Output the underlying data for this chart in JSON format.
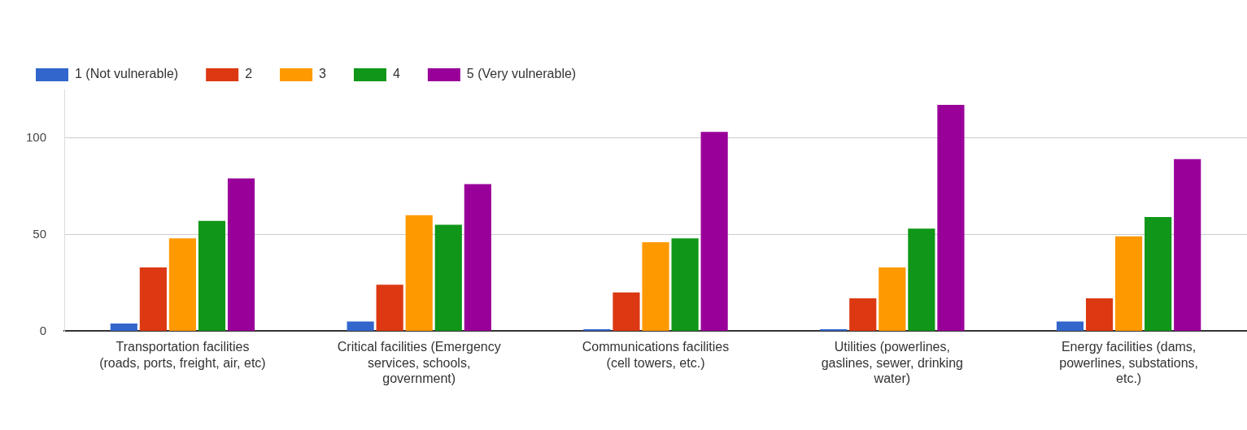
{
  "chart_data": {
    "type": "bar",
    "categories": [
      "Transportation facilities (roads, ports, freight, air, etc)",
      "Critical facilities (Emergency services, schools, government)",
      "Communications facilities (cell towers, etc.)",
      "Utilities (powerlines, gaslines, sewer, drinking water)",
      "Energy facilities (dams, powerlines, substations, etc.)"
    ],
    "series": [
      {
        "name": "1 (Not vulnerable)",
        "color": "#3366cc",
        "values": [
          4,
          5,
          1,
          1,
          5
        ]
      },
      {
        "name": "2",
        "color": "#dc3912",
        "values": [
          33,
          24,
          20,
          17,
          17
        ]
      },
      {
        "name": "3",
        "color": "#ff9900",
        "values": [
          48,
          60,
          46,
          33,
          49
        ]
      },
      {
        "name": "4",
        "color": "#109618",
        "values": [
          57,
          55,
          48,
          53,
          59
        ]
      },
      {
        "name": "5 (Very vulnerable)",
        "color": "#990099",
        "values": [
          79,
          76,
          103,
          117,
          89
        ]
      }
    ],
    "ylim": [
      0,
      125
    ],
    "yticks": [
      0,
      50,
      100
    ],
    "grid": "y",
    "legend": "top left"
  }
}
